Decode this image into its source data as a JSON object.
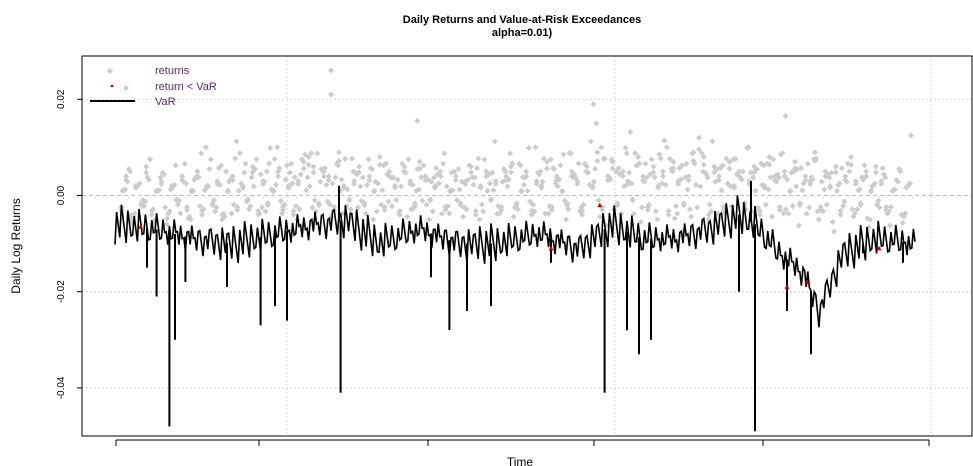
{
  "chart_data": {
    "type": "line",
    "title": "Daily Returns and Value-at-Risk Exceedances",
    "subtitle": "alpha=0.01)",
    "xlabel": "Time",
    "ylabel": "Daily Log Returns",
    "ylim": [
      -0.05,
      0.029
    ],
    "xlim": [
      0,
      1000
    ],
    "y_ticks": [
      {
        "value": 0.02,
        "label": "0.02"
      },
      {
        "value": 0.0,
        "label": "0.00"
      },
      {
        "value": -0.02,
        "label": "-0.02"
      },
      {
        "value": -0.04,
        "label": "-0.04"
      }
    ],
    "x_ticks": [
      40,
      215,
      420,
      625,
      833,
      1020
    ],
    "x_grid": [
      215,
      625,
      1020
    ],
    "zero_line": 0.0,
    "grid": true,
    "legend_position": "top-left",
    "legend": {
      "returns": "returns",
      "exceed": "return < VaR",
      "var": "VaR"
    },
    "colors": {
      "returns": "#cccccc",
      "exceed": "#cc0000",
      "var": "#000000",
      "grid": "#d6d6d6",
      "zero": "#bbbbbb"
    },
    "returns_sample_x": [
      8,
      14,
      20,
      26,
      33,
      39,
      46,
      52,
      58,
      65,
      71,
      77,
      84,
      90,
      96,
      103,
      109,
      115,
      122,
      128,
      134,
      141,
      147,
      153,
      160,
      166,
      172,
      179,
      185,
      191,
      198,
      204,
      210,
      217,
      223,
      229,
      236,
      242,
      248,
      255,
      261,
      267,
      274,
      280,
      286,
      293,
      299,
      305,
      312,
      318,
      324,
      331,
      337,
      343,
      350,
      356,
      362,
      369,
      375,
      381,
      388,
      394,
      400,
      407,
      413,
      419,
      426,
      432,
      438,
      445,
      451,
      457,
      464,
      470,
      476,
      483,
      489,
      495,
      502,
      508,
      514,
      521,
      527,
      533,
      540,
      546,
      552,
      559,
      565,
      571,
      578,
      584,
      590,
      597,
      603,
      609,
      616,
      622,
      628,
      635,
      641,
      647,
      654,
      660,
      666,
      673,
      679,
      685,
      692,
      698,
      704,
      711,
      717,
      723,
      730,
      736,
      742,
      749,
      755,
      761,
      768,
      774,
      780,
      787,
      793,
      799,
      806,
      812,
      818,
      825,
      831,
      837,
      844,
      850,
      856,
      863,
      869,
      875,
      882,
      888,
      894,
      901,
      907,
      913,
      920,
      926,
      932,
      939,
      945,
      951,
      958,
      964,
      970,
      977,
      983,
      989
    ],
    "returns_sample_y": [
      -0.003,
      0.004,
      -0.005,
      0.002,
      -0.002,
      0.006,
      -0.004,
      0.001,
      0.003,
      -0.006,
      0.002,
      -0.001,
      0.004,
      -0.003,
      0.001,
      0.005,
      -0.004,
      0.002,
      -0.002,
      0.003,
      -0.005,
      0.001,
      0.004,
      -0.003,
      0.002,
      -0.001,
      0.006,
      -0.004,
      0.003,
      -0.002,
      0.001,
      0.005,
      -0.003,
      0.002,
      -0.004,
      0.003,
      0.007,
      0.008,
      0.006,
      -0.002,
      0.005,
      0.004,
      -0.003,
      0.009,
      0.002,
      -0.001,
      0.003,
      0.006,
      -0.002,
      0.004,
      0.001,
      0.008,
      -0.003,
      0.005,
      0.002,
      -0.004,
      0.006,
      0.003,
      -0.002,
      0.007,
      0.004,
      -0.001,
      0.002,
      0.005,
      -0.003,
      0.001,
      0.004,
      -0.002,
      0.003,
      0.006,
      -0.004,
      0.002,
      0.005,
      -0.001,
      0.003,
      -0.003,
      0.004,
      0.006,
      -0.002,
      0.001,
      0.005,
      -0.004,
      0.003,
      0.002,
      0.007,
      -0.003,
      0.004,
      0.001,
      -0.002,
      0.005,
      0.003,
      -0.004,
      0.006,
      0.002,
      0.009,
      -0.003,
      0.004,
      0.007,
      -0.002,
      0.005,
      0.003,
      -0.001,
      0.008,
      0.004,
      -0.003,
      0.006,
      0.002,
      0.005,
      -0.004,
      0.007,
      0.003,
      -0.002,
      0.004,
      0.009,
      0.012,
      0.008,
      -0.005,
      0.006,
      0.004,
      -0.003,
      0.007,
      0.002,
      0.005,
      -0.002,
      0.003,
      0.006,
      -0.004,
      0.002,
      0.008,
      0.004,
      -0.003,
      0.005,
      0.001,
      0.007,
      -0.002,
      0.004,
      0.003,
      0.009,
      -0.003,
      0.005,
      0.002,
      0.006,
      -0.004,
      0.004,
      0.008,
      0.003,
      -0.002,
      0.005,
      0.001,
      0.006,
      0.003,
      -0.003
    ],
    "returns_outliers": [
      {
        "x": 270,
        "y": 0.026
      },
      {
        "x": 270,
        "y": 0.021
      },
      {
        "x": 378,
        "y": 0.0155
      },
      {
        "x": 598,
        "y": 0.019
      },
      {
        "x": 838,
        "y": 0.0165
      },
      {
        "x": 995,
        "y": 0.0125
      }
    ],
    "var_baseline": [
      {
        "x": 0,
        "y": -0.006
      },
      {
        "x": 50,
        "y": -0.007
      },
      {
        "x": 100,
        "y": -0.009
      },
      {
        "x": 150,
        "y": -0.01
      },
      {
        "x": 200,
        "y": -0.008
      },
      {
        "x": 250,
        "y": -0.006
      },
      {
        "x": 290,
        "y": -0.005
      },
      {
        "x": 330,
        "y": -0.01
      },
      {
        "x": 380,
        "y": -0.007
      },
      {
        "x": 430,
        "y": -0.01
      },
      {
        "x": 480,
        "y": -0.01
      },
      {
        "x": 530,
        "y": -0.008
      },
      {
        "x": 580,
        "y": -0.011
      },
      {
        "x": 620,
        "y": -0.006
      },
      {
        "x": 660,
        "y": -0.009
      },
      {
        "x": 700,
        "y": -0.009
      },
      {
        "x": 740,
        "y": -0.007
      },
      {
        "x": 780,
        "y": -0.004
      },
      {
        "x": 800,
        "y": -0.006
      },
      {
        "x": 830,
        "y": -0.012
      },
      {
        "x": 860,
        "y": -0.016
      },
      {
        "x": 880,
        "y": -0.024
      },
      {
        "x": 910,
        "y": -0.012
      },
      {
        "x": 950,
        "y": -0.009
      },
      {
        "x": 1000,
        "y": -0.01
      },
      {
        "x": 1030,
        "y": -0.011
      }
    ],
    "var_spikes": [
      {
        "x": 40,
        "y": -0.015
      },
      {
        "x": 52,
        "y": -0.021
      },
      {
        "x": 68,
        "y": -0.048
      },
      {
        "x": 75,
        "y": -0.03
      },
      {
        "x": 88,
        "y": -0.018
      },
      {
        "x": 140,
        "y": -0.019
      },
      {
        "x": 182,
        "y": -0.027
      },
      {
        "x": 200,
        "y": -0.023
      },
      {
        "x": 215,
        "y": -0.026
      },
      {
        "x": 280,
        "y": 0.002
      },
      {
        "x": 282,
        "y": -0.041
      },
      {
        "x": 395,
        "y": -0.017
      },
      {
        "x": 418,
        "y": -0.028
      },
      {
        "x": 440,
        "y": -0.024
      },
      {
        "x": 470,
        "y": -0.023
      },
      {
        "x": 545,
        "y": -0.014
      },
      {
        "x": 612,
        "y": -0.041
      },
      {
        "x": 640,
        "y": -0.028
      },
      {
        "x": 655,
        "y": -0.033
      },
      {
        "x": 670,
        "y": -0.03
      },
      {
        "x": 780,
        "y": -0.02
      },
      {
        "x": 795,
        "y": 0.003
      },
      {
        "x": 800,
        "y": -0.049
      },
      {
        "x": 840,
        "y": -0.024
      },
      {
        "x": 870,
        "y": -0.033
      },
      {
        "x": 935,
        "y": -0.012
      },
      {
        "x": 985,
        "y": -0.014
      }
    ],
    "exceedances": [
      {
        "x": 32,
        "y": -0.0065
      },
      {
        "x": 545,
        "y": -0.011
      },
      {
        "x": 606,
        "y": -0.002
      },
      {
        "x": 840,
        "y": -0.019
      },
      {
        "x": 865,
        "y": -0.018
      },
      {
        "x": 955,
        "y": -0.011
      }
    ]
  }
}
